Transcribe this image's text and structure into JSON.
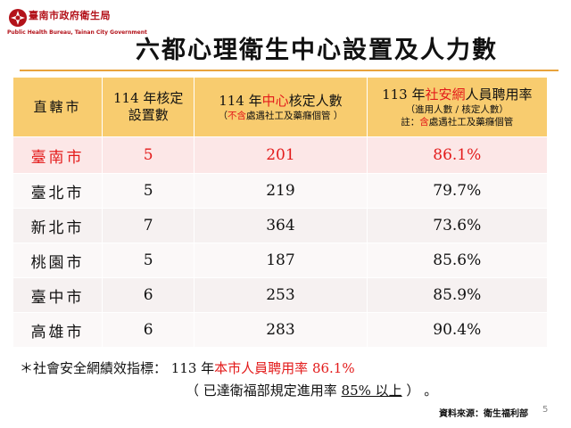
{
  "logo": {
    "title": "臺南市政府衛生局",
    "subtitle": "Public Health Bureau, Tainan City Government",
    "color": "#b3121a"
  },
  "title": "六都心理衛生中心設置及人力數",
  "table": {
    "headers": {
      "col1": "直轄市",
      "col2_line1": "114 年核定",
      "col2_line2": "設置數",
      "col3_prefix": "114 年",
      "col3_red": "中心",
      "col3_suffix": "核定人數",
      "col3_sub_open": "（",
      "col3_sub_red": "不含",
      "col3_sub_rest": "處遇社工及藥癮個管 ）",
      "col4_prefix": "113 年",
      "col4_red": "社安網",
      "col4_suffix": "人員聘用率",
      "col4_sub": "（進用人數 / 核定人數）",
      "col4_note_prefix": "註：",
      "col4_note_red": "含",
      "col4_note_rest": "處遇社工及藥癮個管"
    },
    "rows": [
      {
        "city": "臺南市",
        "centers": "5",
        "staff": "201",
        "rate": "86.1%"
      },
      {
        "city": "臺北市",
        "centers": "5",
        "staff": "219",
        "rate": "79.7%"
      },
      {
        "city": "新北市",
        "centers": "7",
        "staff": "364",
        "rate": "73.6%"
      },
      {
        "city": "桃園市",
        "centers": "5",
        "staff": "187",
        "rate": "85.6%"
      },
      {
        "city": "臺中市",
        "centers": "6",
        "staff": "253",
        "rate": "85.9%"
      },
      {
        "city": "高雄市",
        "centers": "6",
        "staff": "283",
        "rate": "90.4%"
      }
    ]
  },
  "footnote": {
    "prefix": "＊社會安全網績效指標： 113 年",
    "red": "本市人員聘用率 86.1%",
    "line2_prefix": "（ 已達衛福部規定進用率 ",
    "line2_underline": "85% 以上",
    "line2_suffix": " ） 。"
  },
  "source": "資料來源：衛生福利部",
  "page_number": "5",
  "colors": {
    "header_bg": "#f8cc6f",
    "accent_red": "#e31b1b",
    "separator": "#e8a33c"
  }
}
